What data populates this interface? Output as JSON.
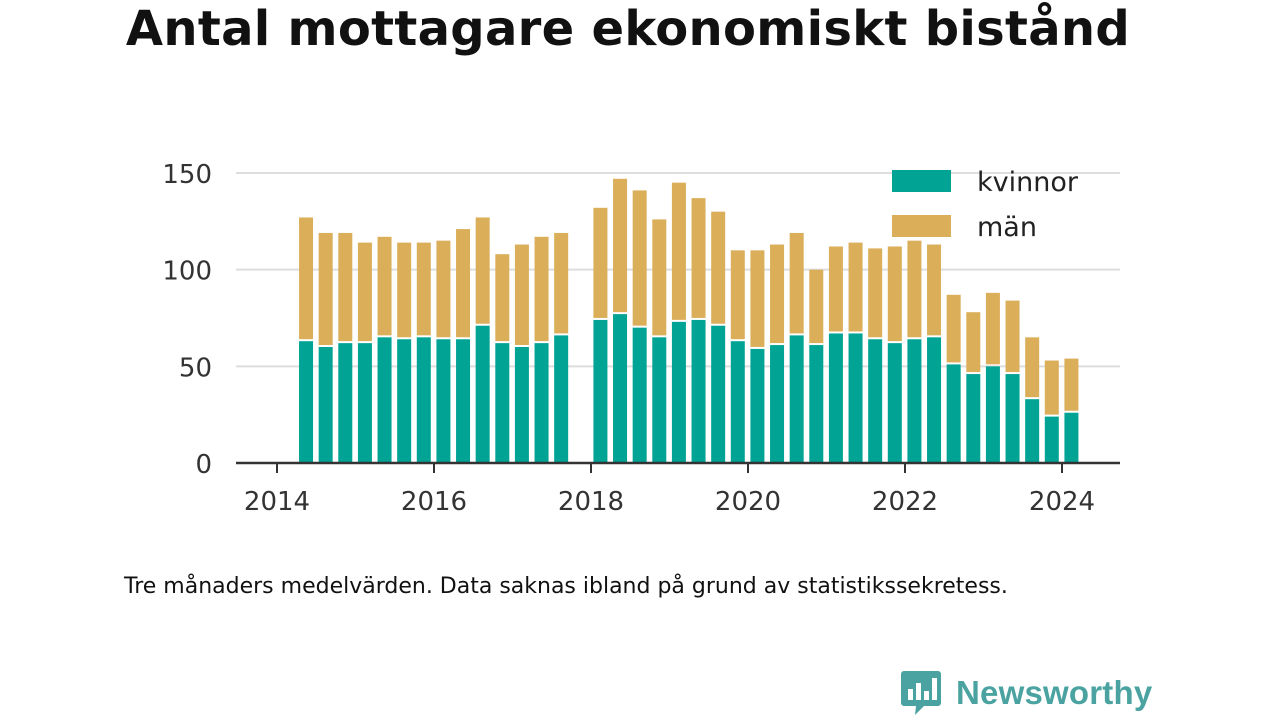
{
  "title": "Antal mottagare ekonomiskt bistånd",
  "note": "Tre månaders medelvärden. Data saknas ibland på grund av statistikssekretess.",
  "brand": {
    "name": "Newsworthy",
    "icon": "newsworthy-logo-icon"
  },
  "colors": {
    "kvinnor": "#00a394",
    "man": "#dbae5a",
    "grid": "#dddddd",
    "axis": "#333333"
  },
  "chart_data": {
    "type": "bar",
    "stacked": true,
    "title": "Antal mottagare ekonomiskt bistånd",
    "xlabel": "",
    "ylabel": "",
    "ylim": [
      0,
      150
    ],
    "yticks": [
      0,
      50,
      100,
      150
    ],
    "xlim": [
      2014.0,
      2025.0
    ],
    "xticks": [
      2014,
      2016,
      2018,
      2020,
      2022,
      2024
    ],
    "legend": "top-right",
    "grid": true,
    "x": [
      2014.37,
      2014.62,
      2014.87,
      2015.12,
      2015.37,
      2015.62,
      2015.87,
      2016.12,
      2016.37,
      2016.62,
      2016.87,
      2017.12,
      2017.37,
      2017.62,
      2018.12,
      2018.37,
      2018.62,
      2018.87,
      2019.12,
      2019.37,
      2019.62,
      2019.87,
      2020.12,
      2020.37,
      2020.62,
      2020.87,
      2021.12,
      2021.37,
      2021.62,
      2021.87,
      2022.12,
      2022.37,
      2022.62,
      2022.87,
      2023.12,
      2023.37,
      2023.62,
      2023.87,
      2024.12
    ],
    "series": [
      {
        "name": "kvinnor",
        "color": "#00a394",
        "values": [
          63,
          60,
          62,
          62,
          65,
          64,
          65,
          64,
          64,
          71,
          62,
          60,
          62,
          66,
          74,
          77,
          70,
          65,
          73,
          74,
          71,
          63,
          59,
          61,
          66,
          61,
          67,
          67,
          64,
          62,
          64,
          65,
          51,
          46,
          50,
          46,
          33,
          24,
          26
        ]
      },
      {
        "name": "män",
        "color": "#dbae5a",
        "values": [
          64,
          59,
          57,
          52,
          52,
          50,
          49,
          51,
          57,
          56,
          46,
          53,
          55,
          53,
          58,
          70,
          71,
          61,
          72,
          63,
          59,
          47,
          51,
          52,
          53,
          39,
          45,
          47,
          47,
          50,
          51,
          48,
          36,
          32,
          38,
          38,
          32,
          29,
          28
        ]
      }
    ]
  }
}
